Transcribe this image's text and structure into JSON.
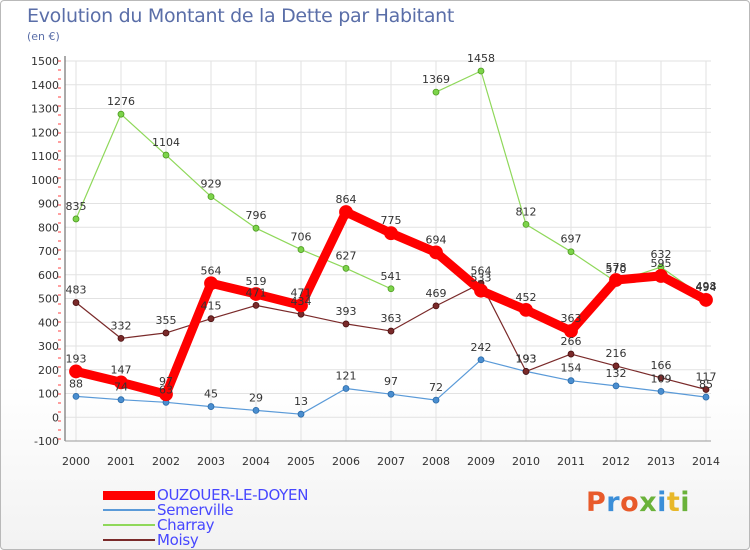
{
  "title": "Evolution du Montant de la Dette par Habitant",
  "subtitle": "(en €)",
  "logo_text": "Proxiti",
  "logo_colors": [
    "#e85a2a",
    "#3b8ed8",
    "#e85a2a",
    "#6ab23a",
    "#3b8ed8",
    "#e8b82a",
    "#6ab23a"
  ],
  "chart_data": {
    "type": "line",
    "title": "Evolution du Montant de la Dette par Habitant",
    "ylabel": "(en €)",
    "x": [
      "2000",
      "2001",
      "2002",
      "2003",
      "2004",
      "2005",
      "2006",
      "2007",
      "2008",
      "2009",
      "2010",
      "2011",
      "2012",
      "2013",
      "2014"
    ],
    "ylim": [
      -100,
      1500
    ],
    "yticks": [
      -100,
      0,
      100,
      200,
      300,
      400,
      500,
      600,
      700,
      800,
      900,
      1000,
      1100,
      1200,
      1300,
      1400,
      1500
    ],
    "grid": true,
    "legend_position": "bottom",
    "series": [
      {
        "name": "OUZOUER-LE-DOYEN",
        "color": "#ff0000",
        "values": [
          193,
          147,
          97,
          564,
          519,
          471,
          864,
          775,
          694,
          533,
          452,
          363,
          578,
          595,
          494
        ]
      },
      {
        "name": "Semerville",
        "color": "#5a9ad8",
        "values": [
          88,
          74,
          63,
          45,
          29,
          13,
          121,
          97,
          72,
          242,
          193,
          154,
          132,
          109,
          85
        ]
      },
      {
        "name": "Charray",
        "color": "#8fd85a",
        "values": [
          835,
          1276,
          1104,
          929,
          796,
          706,
          627,
          541,
          1369,
          1458,
          812,
          697,
          570,
          632,
          498
        ]
      },
      {
        "name": "Moisy",
        "color": "#7a2a2a",
        "values": [
          483,
          332,
          355,
          415,
          471,
          434,
          393,
          363,
          469,
          564,
          193,
          266,
          216,
          166,
          117
        ]
      }
    ]
  }
}
